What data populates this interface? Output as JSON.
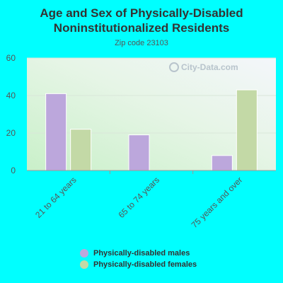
{
  "chart_data": {
    "type": "bar",
    "title": "Age and Sex of Physically-Disabled Noninstitutionalized Residents",
    "subtitle": "Zip code 23103",
    "categories": [
      "21 to 64 years",
      "65 to 74 years",
      "75 years and over"
    ],
    "series": [
      {
        "name": "Physically-disabled males",
        "values": [
          41,
          19,
          8
        ],
        "color": "#bca7dc"
      },
      {
        "name": "Physically-disabled females",
        "values": [
          22,
          0,
          43
        ],
        "color": "#c3d9a6"
      }
    ],
    "ylim": [
      0,
      60
    ],
    "yticks": [
      0,
      20,
      40,
      60
    ],
    "grid": true,
    "legend_position": "bottom",
    "watermark": "City-Data.com"
  }
}
